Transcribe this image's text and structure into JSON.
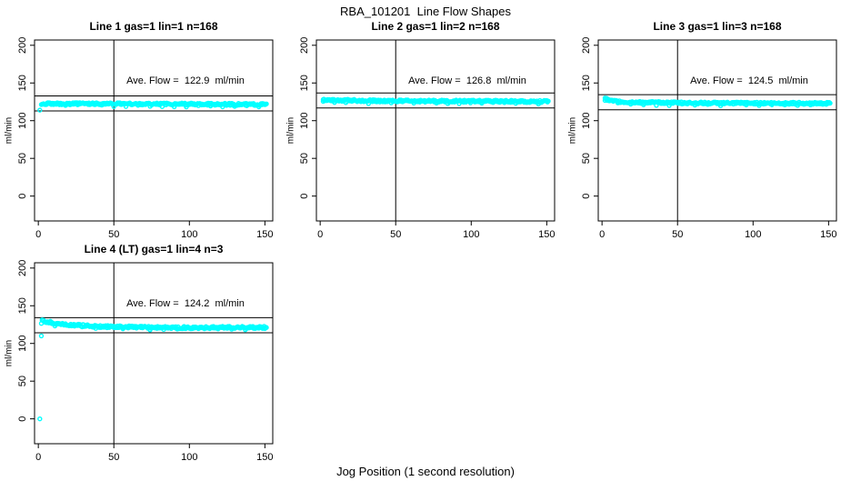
{
  "figure": {
    "title": "RBA_101201  Line Flow Shapes",
    "xlabel": "Jog Position (1 second resolution)",
    "background": "#ffffff",
    "point_color": "#00ffff",
    "line_color": "#000000"
  },
  "chart_data": [
    {
      "type": "scatter",
      "title": "Line 1 gas=1 lin=1 n=168",
      "annotation": "Ave. Flow =  122.9  ml/min",
      "ave_flow": 122.9,
      "n": 168,
      "ylabel": "ml/min",
      "xlim": [
        -2.5,
        155.2
      ],
      "ylim": [
        -33,
        207
      ],
      "xticks": [
        0,
        50,
        100,
        150
      ],
      "yticks": [
        0,
        50,
        100,
        150,
        200
      ],
      "vline_x": 50,
      "hlines": [
        132.9,
        112.9
      ],
      "band": {
        "x_start": 2,
        "x_end": 151,
        "step": 0.5,
        "jitter": 1.4,
        "dip_every": 16,
        "dip_amount": 2.4,
        "profile": [
          [
            2,
            122.5
          ],
          [
            30,
            122.5
          ],
          [
            151,
            121.5
          ]
        ]
      },
      "outliers": [
        [
          1,
          114
        ]
      ]
    },
    {
      "type": "scatter",
      "title": "Line 2 gas=1 lin=2 n=168",
      "annotation": "Ave. Flow =  126.8  ml/min",
      "ave_flow": 126.8,
      "n": 168,
      "ylabel": "ml/min",
      "xlim": [
        -2.5,
        155.2
      ],
      "ylim": [
        -33,
        207
      ],
      "xticks": [
        0,
        50,
        100,
        150
      ],
      "yticks": [
        0,
        50,
        100,
        150,
        200
      ],
      "vline_x": 50,
      "hlines": [
        136.8,
        116.8
      ],
      "band": {
        "x_start": 2,
        "x_end": 151,
        "step": 0.5,
        "jitter": 1.4,
        "dip_every": 15,
        "dip_amount": 2.4,
        "profile": [
          [
            2,
            127.5
          ],
          [
            40,
            126.2
          ],
          [
            151,
            125.5
          ]
        ]
      },
      "outliers": [
        [
          2,
          128
        ]
      ]
    },
    {
      "type": "scatter",
      "title": "Line 3 gas=1 lin=3 n=168",
      "annotation": "Ave. Flow =  124.5  ml/min",
      "ave_flow": 124.5,
      "n": 168,
      "ylabel": "ml/min",
      "xlim": [
        -2.5,
        155.2
      ],
      "ylim": [
        -33,
        207
      ],
      "xticks": [
        0,
        50,
        100,
        150
      ],
      "yticks": [
        0,
        50,
        100,
        150,
        200
      ],
      "vline_x": 50,
      "hlines": [
        134.5,
        114.5
      ],
      "band": {
        "x_start": 2,
        "x_end": 151,
        "step": 0.5,
        "jitter": 1.4,
        "dip_every": 17,
        "dip_amount": 2.4,
        "profile": [
          [
            2,
            129.5
          ],
          [
            5,
            126.5
          ],
          [
            15,
            124.5
          ],
          [
            60,
            123.5
          ],
          [
            151,
            123
          ]
        ]
      },
      "outliers": [
        [
          2,
          130
        ]
      ]
    },
    {
      "type": "scatter",
      "title": "Line 4 (LT) gas=1 lin=4 n=3",
      "annotation": "Ave. Flow =  124.2  ml/min",
      "ave_flow": 124.2,
      "n": 3,
      "ylabel": "ml/min",
      "xlim": [
        -2.5,
        155.2
      ],
      "ylim": [
        -33,
        207
      ],
      "xticks": [
        0,
        50,
        100,
        150
      ],
      "yticks": [
        0,
        50,
        100,
        150,
        200
      ],
      "vline_x": 50,
      "hlines": [
        134.2,
        114.2
      ],
      "band": {
        "x_start": 2,
        "x_end": 151,
        "step": 0.5,
        "jitter": 1.5,
        "dip_every": 18,
        "dip_amount": 2.4,
        "profile": [
          [
            2,
            130
          ],
          [
            15,
            125.5
          ],
          [
            40,
            122.5
          ],
          [
            80,
            121
          ],
          [
            151,
            121.2
          ]
        ]
      },
      "outliers": [
        [
          1,
          0
        ],
        [
          2,
          110
        ]
      ]
    }
  ]
}
